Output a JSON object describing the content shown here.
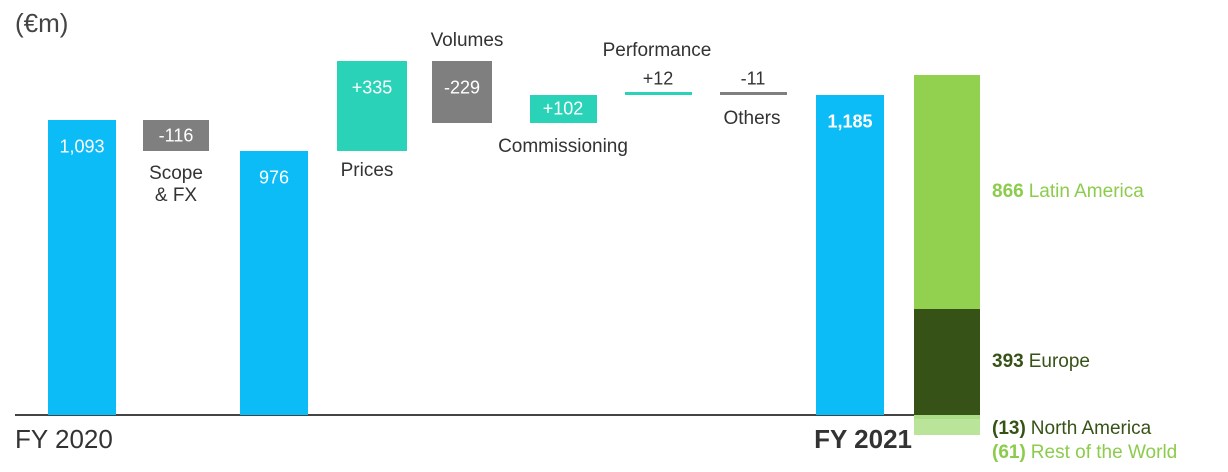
{
  "chart_data": {
    "type": "waterfall",
    "unit_label": "(€m)",
    "categories": [
      "FY 2020",
      "Scope & FX",
      null,
      "Prices",
      "Volumes",
      "Commissioning",
      "Performance",
      "Others",
      "FY 2021"
    ],
    "values": [
      1093,
      -116,
      976,
      335,
      -229,
      102,
      12,
      -11,
      1185
    ],
    "value_labels": [
      "1,093",
      "-116",
      "976",
      "+335",
      "-229",
      "+102",
      "+12",
      "-11",
      "1,185"
    ],
    "kinds": [
      "total",
      "delta",
      "total",
      "delta",
      "delta",
      "delta",
      "delta",
      "delta",
      "total"
    ],
    "colors": {
      "total": "#0bbcf6",
      "increase": "#2ad3b8",
      "decrease": "#7f7f7f"
    },
    "breakdown": [
      {
        "name": "Latin America",
        "value": 866,
        "label": "866",
        "color": "#92d050",
        "text_color": "#8ccc4c"
      },
      {
        "name": "Europe",
        "value": 393,
        "label": "393",
        "color": "#375217",
        "text_color": "#375217"
      },
      {
        "name": "North America",
        "value": -13,
        "label": "(13)",
        "color": "#a9dc84",
        "text_color": "#375217"
      },
      {
        "name": "Rest of the World",
        "value": -61,
        "label": "(61)",
        "color": "#b9e49a",
        "text_color": "#8ccc4c"
      }
    ]
  }
}
